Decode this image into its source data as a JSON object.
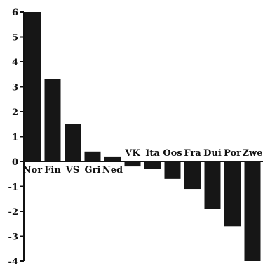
{
  "chart_data": {
    "type": "bar",
    "categories": [
      "Nor",
      "Fin",
      "VS",
      "Gri",
      "Ned",
      "VK",
      "Ita",
      "Oos",
      "Fra",
      "Dui",
      "Por",
      "Zwe"
    ],
    "values": [
      6.0,
      3.3,
      1.5,
      0.4,
      0.2,
      -0.2,
      -0.3,
      -0.7,
      -1.1,
      -1.9,
      -2.6,
      -4.0
    ],
    "yticks": [
      -4,
      -3,
      -2,
      -1,
      0,
      1,
      2,
      3,
      4,
      5,
      6
    ],
    "ylim": [
      -4,
      6
    ],
    "title": "",
    "xlabel": "",
    "ylabel": "",
    "grid": false,
    "bar_color": "#161616"
  }
}
